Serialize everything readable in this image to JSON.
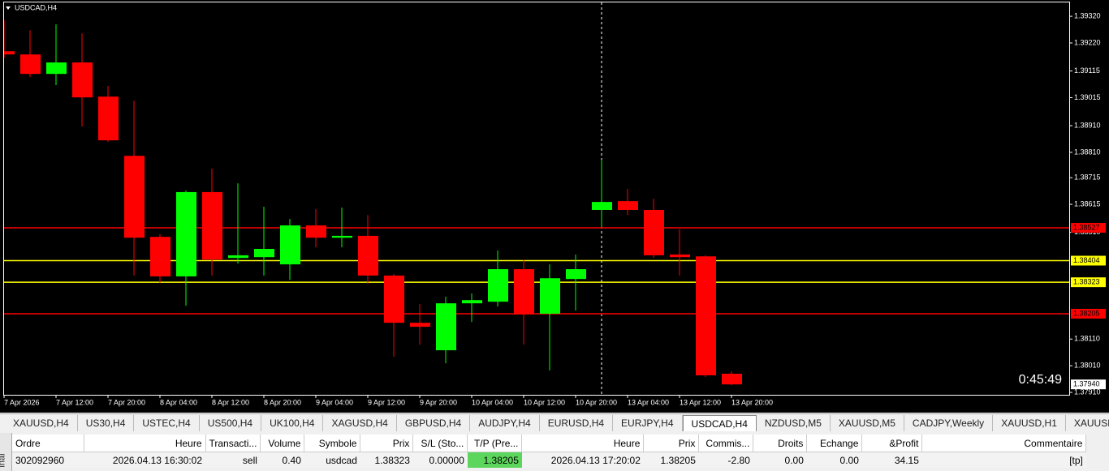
{
  "chart_data": {
    "type": "candlestick",
    "title": "USDCAD,H4",
    "categories": [
      "7 Apr 2026",
      null,
      "7 Apr 12:00",
      null,
      "7 Apr 20:00",
      null,
      "8 Apr 04:00",
      null,
      "8 Apr 12:00",
      null,
      "8 Apr 20:00",
      null,
      "9 Apr 04:00",
      null,
      "9 Apr 12:00",
      null,
      "9 Apr 20:00",
      null,
      "10 Apr 04:00",
      null,
      "10 Apr 12:00",
      null,
      "10 Apr 20:00",
      null,
      "13 Apr 04:00",
      null,
      "13 Apr 12:00",
      null,
      "13 Apr 20:00"
    ],
    "open": [
      1.39189,
      1.39177,
      1.39104,
      1.39147,
      1.39019,
      1.38797,
      1.38493,
      1.38345,
      1.38661,
      1.38414,
      1.38417,
      1.3839,
      1.38536,
      1.3849,
      1.38497,
      1.38348,
      1.38171,
      1.38068,
      1.38244,
      1.3825,
      1.38372,
      1.38205,
      1.38335,
      1.38594,
      1.38627,
      1.38594,
      1.38427,
      1.3842,
      1.3798
    ],
    "high": [
      1.39305,
      1.39268,
      1.3929,
      1.39256,
      1.39059,
      1.39004,
      1.38503,
      1.38667,
      1.38749,
      1.38694,
      1.38606,
      1.3856,
      1.38597,
      1.38603,
      1.38575,
      1.38354,
      1.38241,
      1.38269,
      1.38281,
      1.38442,
      1.38408,
      1.3839,
      1.38427,
      1.38782,
      1.38673,
      1.38636,
      1.38521,
      1.38424,
      1.37989
    ],
    "low": [
      1.39165,
      1.39092,
      1.39062,
      1.38907,
      1.38849,
      1.38348,
      1.3832,
      1.38235,
      1.38348,
      1.38393,
      1.38348,
      1.38332,
      1.38454,
      1.38454,
      1.38317,
      1.38044,
      1.38089,
      1.38019,
      1.38174,
      1.38232,
      1.38089,
      1.37992,
      1.38217,
      1.3853,
      1.38575,
      1.38414,
      1.38348,
      1.37968,
      1.37937
    ],
    "close": [
      1.39177,
      1.39104,
      1.39147,
      1.39016,
      1.38855,
      1.3849,
      1.38345,
      1.38661,
      1.38408,
      1.38424,
      1.38448,
      1.38536,
      1.3849,
      1.38497,
      1.38348,
      1.38171,
      1.38156,
      1.38244,
      1.38256,
      1.38372,
      1.38202,
      1.38338,
      1.38372,
      1.38624,
      1.38594,
      1.38424,
      1.38417,
      1.37974,
      1.3794
    ],
    "bull_color": "#00ff00",
    "bear_color": "#ff0000",
    "ylim": [
      1.37901,
      1.39372
    ],
    "yticks": [
      {
        "value": 1.3932,
        "label": "1.39320"
      },
      {
        "value": 1.3922,
        "label": "1.39220"
      },
      {
        "value": 1.39115,
        "label": "1.39115"
      },
      {
        "value": 1.39015,
        "label": "1.39015"
      },
      {
        "value": 1.3891,
        "label": "1.38910"
      },
      {
        "value": 1.3881,
        "label": "1.38810"
      },
      {
        "value": 1.38715,
        "label": "1.38715"
      },
      {
        "value": 1.38615,
        "label": "1.38615"
      },
      {
        "value": 1.3851,
        "label": "1.38510"
      },
      {
        "value": 1.3811,
        "label": "1.38110"
      },
      {
        "value": 1.3801,
        "label": "1.38010"
      },
      {
        "value": 1.3791,
        "label": "1.37910"
      }
    ],
    "levels": [
      {
        "value": 1.38527,
        "label": "1.38527",
        "color": "#ff0000"
      },
      {
        "value": 1.38404,
        "label": "1.38404",
        "color": "#ffff00"
      },
      {
        "value": 1.38323,
        "label": "1.38323",
        "color": "#ffff00"
      },
      {
        "value": 1.38205,
        "label": "1.38205",
        "color": "#ff0000"
      }
    ],
    "last_price": {
      "value": 1.3794,
      "label": "1.37940"
    },
    "timer": "0:45:49"
  },
  "tabs": [
    {
      "label": "XAUUSD,H4"
    },
    {
      "label": "US30,H4"
    },
    {
      "label": "USTEC,H4"
    },
    {
      "label": "US500,H4"
    },
    {
      "label": "UK100,H4"
    },
    {
      "label": "XAGUSD,H4"
    },
    {
      "label": "GBPUSD,H4"
    },
    {
      "label": "AUDJPY,H4"
    },
    {
      "label": "EURUSD,H4"
    },
    {
      "label": "EURJPY,H4"
    },
    {
      "label": "USDCAD,H4",
      "active": true
    },
    {
      "label": "NZDUSD,M5"
    },
    {
      "label": "XAUUSD,M5"
    },
    {
      "label": "CADJPY,Weekly"
    },
    {
      "label": "XAUUSD,H1"
    },
    {
      "label": "XAUUSD,Wee"
    }
  ],
  "terminal_label": "inal",
  "table": {
    "columns": [
      "Ordre",
      "Heure",
      "Transacti...",
      "Volume",
      "Symbole",
      "Prix",
      "S/L (Sto...",
      "T/P (Pre...",
      "Heure",
      "Prix",
      "Commis...",
      "Droits",
      "Echange",
      "&Profit",
      "Commentaire"
    ],
    "rows": [
      [
        "302092960",
        "2026.04.13 16:30:02",
        "sell",
        "0.40",
        "usdcad",
        "1.38323",
        "0.00000",
        "1.38205",
        "2026.04.13 17:20:02",
        "1.38205",
        "-2.80",
        "0.00",
        "0.00",
        "34.15",
        "[tp]"
      ]
    ]
  }
}
